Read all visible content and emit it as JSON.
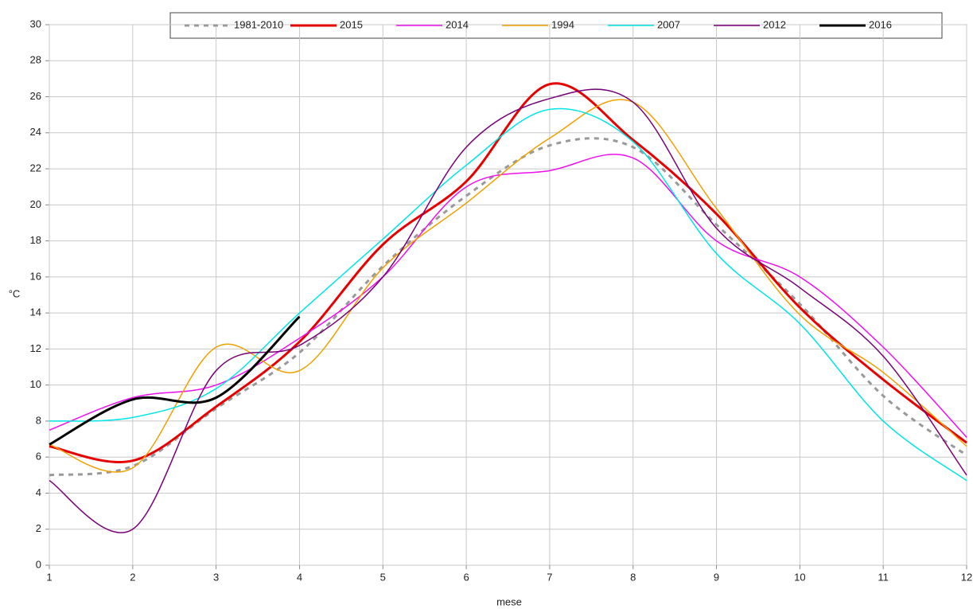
{
  "chart_data": {
    "type": "line",
    "x_label": "mese",
    "y_label": "°C",
    "x": [
      1,
      2,
      3,
      4,
      5,
      6,
      7,
      8,
      9,
      10,
      11,
      12
    ],
    "xlim": [
      1,
      12
    ],
    "xticks": [
      1,
      2,
      3,
      4,
      5,
      6,
      7,
      8,
      9,
      10,
      11,
      12
    ],
    "ylim": [
      0,
      30
    ],
    "yticks": [
      0,
      2,
      4,
      6,
      8,
      10,
      12,
      14,
      16,
      18,
      20,
      22,
      24,
      26,
      28,
      30
    ],
    "grid": true,
    "legend": "top",
    "smooth": true,
    "series": [
      {
        "name": "1981-2010",
        "color": "#999999",
        "dashed": true,
        "width": 3,
        "values": [
          5.0,
          5.5,
          8.7,
          11.8,
          16.6,
          20.5,
          23.3,
          23.2,
          18.9,
          14.5,
          9.4,
          6.1
        ]
      },
      {
        "name": "2015",
        "color": "#e60000",
        "width": 3,
        "values": [
          6.6,
          5.8,
          8.8,
          12.4,
          17.8,
          21.3,
          26.7,
          23.6,
          19.5,
          14.3,
          10.3,
          6.8
        ]
      },
      {
        "name": "2014",
        "color": "#ee10ee",
        "width": 1.5,
        "values": [
          7.5,
          9.3,
          10.0,
          12.6,
          16.0,
          21.0,
          21.9,
          22.6,
          18.0,
          16.0,
          12.1,
          7.1
        ]
      },
      {
        "name": "1994",
        "color": "#f0a000",
        "width": 1.5,
        "values": [
          6.7,
          5.4,
          12.1,
          10.8,
          16.5,
          20.1,
          23.7,
          25.7,
          19.8,
          13.9,
          10.7,
          6.6
        ]
      },
      {
        "name": "2007",
        "color": "#00e5e5",
        "width": 1.5,
        "values": [
          8.0,
          8.2,
          9.8,
          14.0,
          18.1,
          22.2,
          25.3,
          23.5,
          17.3,
          13.4,
          8.0,
          4.7
        ]
      },
      {
        "name": "2012",
        "color": "#780078",
        "width": 1.5,
        "values": [
          4.7,
          2.0,
          10.8,
          12.2,
          16.0,
          23.2,
          25.9,
          25.7,
          18.7,
          15.4,
          11.6,
          5.0
        ]
      },
      {
        "name": "2016",
        "color": "#000000",
        "width": 3,
        "values": [
          6.7,
          9.2,
          9.3,
          13.8,
          null,
          null,
          null,
          null,
          null,
          null,
          null,
          null
        ]
      }
    ]
  }
}
